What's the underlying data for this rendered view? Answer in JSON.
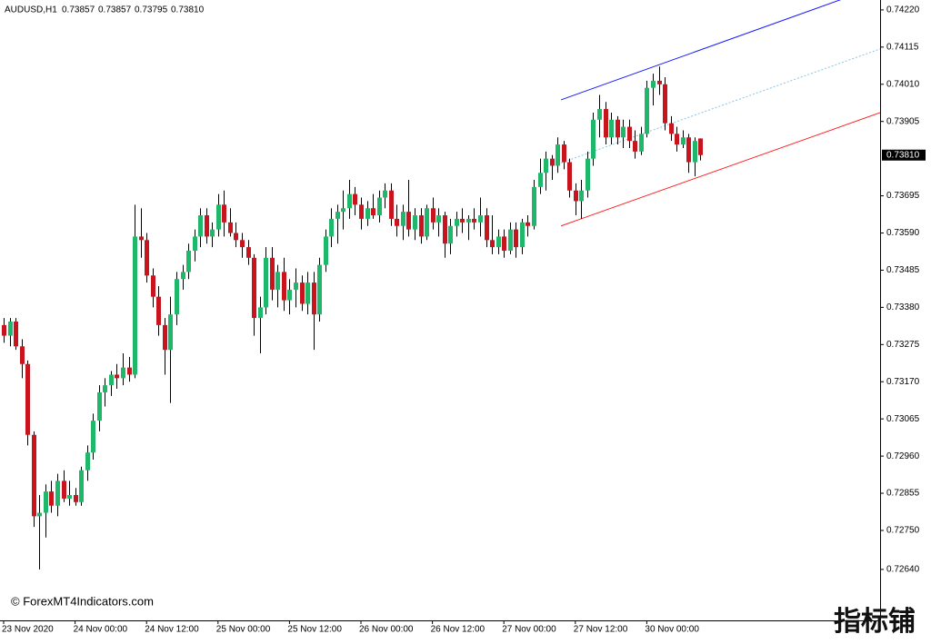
{
  "chart_data": {
    "type": "candlestick",
    "title": "AUDUSD,H1",
    "last_labels": [
      "0.73857",
      "0.73857",
      "0.73795",
      "0.73810"
    ],
    "watermark": "© ForexMT4Indicators.com",
    "logo": "指标铺",
    "bull_color": "#1fb86a",
    "bear_color": "#c8141c",
    "wick_color": "#000000",
    "ylim": [
      0.72496,
      0.74248
    ],
    "yticks": [
      {
        "value": 0.7422,
        "label": "0.74220"
      },
      {
        "value": 0.74115,
        "label": "0.74115"
      },
      {
        "value": 0.7401,
        "label": "0.74010"
      },
      {
        "value": 0.73905,
        "label": "0.73905"
      },
      {
        "value": 0.73695,
        "label": "0.73695"
      },
      {
        "value": 0.7359,
        "label": "0.73590"
      },
      {
        "value": 0.73485,
        "label": "0.73485"
      },
      {
        "value": 0.7338,
        "label": "0.73380"
      },
      {
        "value": 0.73275,
        "label": "0.73275"
      },
      {
        "value": 0.7317,
        "label": "0.73170"
      },
      {
        "value": 0.73065,
        "label": "0.73065"
      },
      {
        "value": 0.7296,
        "label": "0.72960"
      },
      {
        "value": 0.72855,
        "label": "0.72855"
      },
      {
        "value": 0.7275,
        "label": "0.72750"
      },
      {
        "value": 0.7264,
        "label": "0.72640"
      }
    ],
    "current_price": {
      "value": 0.7381,
      "label": "0.73810"
    },
    "categories": [
      "23 Nov 2020",
      null,
      null,
      null,
      null,
      null,
      null,
      null,
      null,
      null,
      null,
      null,
      "24 Nov 00:00",
      null,
      null,
      null,
      null,
      null,
      null,
      null,
      null,
      null,
      null,
      null,
      "24 Nov 12:00",
      null,
      null,
      null,
      null,
      null,
      null,
      null,
      null,
      null,
      null,
      null,
      "25 Nov 00:00",
      null,
      null,
      null,
      null,
      null,
      null,
      null,
      null,
      null,
      null,
      null,
      "25 Nov 12:00",
      null,
      null,
      null,
      null,
      null,
      null,
      null,
      null,
      null,
      null,
      null,
      "26 Nov 00:00",
      null,
      null,
      null,
      null,
      null,
      null,
      null,
      null,
      null,
      null,
      null,
      "26 Nov 12:00",
      null,
      null,
      null,
      null,
      null,
      null,
      null,
      null,
      null,
      null,
      null,
      "27 Nov 00:00",
      null,
      null,
      null,
      null,
      null,
      null,
      null,
      null,
      null,
      null,
      null,
      "27 Nov 12:00",
      null,
      null,
      null,
      null,
      null,
      null,
      null,
      null,
      null,
      null,
      null,
      "30 Nov 00:00",
      null,
      null,
      null,
      null,
      null,
      null,
      null,
      null,
      null
    ],
    "candles": [
      [
        0.7333,
        0.7335,
        0.7328,
        0.733
      ],
      [
        0.733,
        0.7335,
        0.7327,
        0.7334
      ],
      [
        0.7334,
        0.7335,
        0.7326,
        0.7327
      ],
      [
        0.7327,
        0.7329,
        0.7318,
        0.7322
      ],
      [
        0.7322,
        0.7323,
        0.7299,
        0.7302
      ],
      [
        0.7302,
        0.7303,
        0.7276,
        0.7279
      ],
      [
        0.7279,
        0.7285,
        0.7264,
        0.728
      ],
      [
        0.728,
        0.7288,
        0.7273,
        0.7286
      ],
      [
        0.7286,
        0.7289,
        0.728,
        0.7282
      ],
      [
        0.7282,
        0.7291,
        0.7279,
        0.7289
      ],
      [
        0.7289,
        0.7292,
        0.7283,
        0.7284
      ],
      [
        0.7284,
        0.7289,
        0.7282,
        0.7285
      ],
      [
        0.7285,
        0.7287,
        0.7282,
        0.7283
      ],
      [
        0.7283,
        0.7293,
        0.7282,
        0.7292
      ],
      [
        0.7292,
        0.7299,
        0.7289,
        0.7297
      ],
      [
        0.7297,
        0.7308,
        0.7295,
        0.7306
      ],
      [
        0.7306,
        0.7316,
        0.7303,
        0.7314
      ],
      [
        0.7314,
        0.7318,
        0.731,
        0.7316
      ],
      [
        0.7316,
        0.732,
        0.7313,
        0.7319
      ],
      [
        0.7319,
        0.7322,
        0.7315,
        0.7318
      ],
      [
        0.7318,
        0.7325,
        0.7316,
        0.7321
      ],
      [
        0.7321,
        0.7324,
        0.7317,
        0.7319
      ],
      [
        0.7319,
        0.7367,
        0.7318,
        0.7358
      ],
      [
        0.7358,
        0.7366,
        0.7352,
        0.7357
      ],
      [
        0.7357,
        0.7359,
        0.7345,
        0.7347
      ],
      [
        0.7347,
        0.7349,
        0.7338,
        0.7341
      ],
      [
        0.7341,
        0.7344,
        0.733,
        0.7333
      ],
      [
        0.7333,
        0.7335,
        0.7319,
        0.7326
      ],
      [
        0.7326,
        0.7341,
        0.7311,
        0.7336
      ],
      [
        0.7336,
        0.7348,
        0.7333,
        0.7346
      ],
      [
        0.7346,
        0.735,
        0.7343,
        0.7348
      ],
      [
        0.7348,
        0.7356,
        0.7346,
        0.7354
      ],
      [
        0.7354,
        0.736,
        0.7351,
        0.7358
      ],
      [
        0.7358,
        0.7366,
        0.7355,
        0.7364
      ],
      [
        0.7364,
        0.7366,
        0.7356,
        0.7358
      ],
      [
        0.7358,
        0.7362,
        0.7355,
        0.736
      ],
      [
        0.736,
        0.737,
        0.7358,
        0.7367
      ],
      [
        0.7367,
        0.7371,
        0.7358,
        0.7362
      ],
      [
        0.7362,
        0.7366,
        0.7358,
        0.7359
      ],
      [
        0.7359,
        0.7362,
        0.7355,
        0.7357
      ],
      [
        0.7357,
        0.7359,
        0.7352,
        0.7355
      ],
      [
        0.7355,
        0.7357,
        0.735,
        0.7352
      ],
      [
        0.7352,
        0.7353,
        0.733,
        0.7335
      ],
      [
        0.7335,
        0.7341,
        0.7325,
        0.7338
      ],
      [
        0.7338,
        0.7355,
        0.7336,
        0.7352
      ],
      [
        0.7352,
        0.7355,
        0.734,
        0.7343
      ],
      [
        0.7343,
        0.735,
        0.7338,
        0.7348
      ],
      [
        0.7348,
        0.7352,
        0.7337,
        0.734
      ],
      [
        0.734,
        0.7346,
        0.7336,
        0.7343
      ],
      [
        0.7343,
        0.7349,
        0.7338,
        0.7345
      ],
      [
        0.7345,
        0.7347,
        0.7337,
        0.7339
      ],
      [
        0.7339,
        0.7348,
        0.7336,
        0.7345
      ],
      [
        0.7345,
        0.7348,
        0.7326,
        0.7336
      ],
      [
        0.7336,
        0.7352,
        0.7334,
        0.735
      ],
      [
        0.735,
        0.736,
        0.7348,
        0.7358
      ],
      [
        0.7358,
        0.7366,
        0.7355,
        0.7363
      ],
      [
        0.7363,
        0.7367,
        0.7356,
        0.7365
      ],
      [
        0.7365,
        0.7371,
        0.736,
        0.7366
      ],
      [
        0.7366,
        0.7374,
        0.7363,
        0.737
      ],
      [
        0.737,
        0.7372,
        0.7364,
        0.7367
      ],
      [
        0.7367,
        0.7369,
        0.736,
        0.7363
      ],
      [
        0.7363,
        0.7368,
        0.7361,
        0.7366
      ],
      [
        0.7366,
        0.737,
        0.7363,
        0.7364
      ],
      [
        0.7364,
        0.7371,
        0.7362,
        0.7369
      ],
      [
        0.7369,
        0.7373,
        0.7366,
        0.7371
      ],
      [
        0.7371,
        0.7373,
        0.7361,
        0.7363
      ],
      [
        0.7363,
        0.7367,
        0.7358,
        0.7361
      ],
      [
        0.7361,
        0.7367,
        0.7357,
        0.7365
      ],
      [
        0.7365,
        0.7374,
        0.7358,
        0.736
      ],
      [
        0.736,
        0.7366,
        0.7357,
        0.7364
      ],
      [
        0.7364,
        0.7366,
        0.7356,
        0.7358
      ],
      [
        0.7358,
        0.7367,
        0.7357,
        0.7366
      ],
      [
        0.7366,
        0.7369,
        0.736,
        0.7362
      ],
      [
        0.7362,
        0.7366,
        0.7358,
        0.7364
      ],
      [
        0.7364,
        0.7365,
        0.7352,
        0.7356
      ],
      [
        0.7356,
        0.7363,
        0.7353,
        0.7361
      ],
      [
        0.7361,
        0.7365,
        0.7358,
        0.7363
      ],
      [
        0.7363,
        0.7366,
        0.7359,
        0.7362
      ],
      [
        0.7362,
        0.7364,
        0.7357,
        0.7363
      ],
      [
        0.7363,
        0.7366,
        0.736,
        0.7362
      ],
      [
        0.7362,
        0.7369,
        0.7358,
        0.7364
      ],
      [
        0.7364,
        0.7366,
        0.7355,
        0.7357
      ],
      [
        0.7357,
        0.7364,
        0.7353,
        0.7355
      ],
      [
        0.7355,
        0.736,
        0.7353,
        0.7358
      ],
      [
        0.7358,
        0.736,
        0.7352,
        0.7354
      ],
      [
        0.7354,
        0.7362,
        0.7353,
        0.736
      ],
      [
        0.736,
        0.7362,
        0.7352,
        0.7355
      ],
      [
        0.7355,
        0.7363,
        0.7353,
        0.7362
      ],
      [
        0.7362,
        0.7364,
        0.7358,
        0.7361
      ],
      [
        0.7361,
        0.7374,
        0.736,
        0.7372
      ],
      [
        0.7372,
        0.738,
        0.737,
        0.7376
      ],
      [
        0.7376,
        0.7382,
        0.7371,
        0.738
      ],
      [
        0.738,
        0.7381,
        0.7374,
        0.7378
      ],
      [
        0.7378,
        0.7386,
        0.7376,
        0.7384
      ],
      [
        0.7384,
        0.7385,
        0.7377,
        0.7379
      ],
      [
        0.7379,
        0.738,
        0.7369,
        0.7371
      ],
      [
        0.7371,
        0.7373,
        0.7364,
        0.7368
      ],
      [
        0.7368,
        0.7374,
        0.7363,
        0.7371
      ],
      [
        0.7371,
        0.7382,
        0.7369,
        0.738
      ],
      [
        0.738,
        0.7393,
        0.7378,
        0.7391
      ],
      [
        0.7391,
        0.7398,
        0.7386,
        0.7394
      ],
      [
        0.7394,
        0.7396,
        0.7384,
        0.7386
      ],
      [
        0.7386,
        0.7393,
        0.7384,
        0.7391
      ],
      [
        0.7391,
        0.7392,
        0.7384,
        0.7386
      ],
      [
        0.7386,
        0.7391,
        0.7383,
        0.7389
      ],
      [
        0.7389,
        0.7391,
        0.7383,
        0.7385
      ],
      [
        0.7385,
        0.7388,
        0.738,
        0.7382
      ],
      [
        0.7382,
        0.7389,
        0.7381,
        0.7387
      ],
      [
        0.7387,
        0.7402,
        0.7386,
        0.74
      ],
      [
        0.74,
        0.7404,
        0.7395,
        0.7402
      ],
      [
        0.7402,
        0.7406,
        0.7398,
        0.7401
      ],
      [
        0.7401,
        0.7403,
        0.7388,
        0.739
      ],
      [
        0.739,
        0.7392,
        0.7385,
        0.7387
      ],
      [
        0.7387,
        0.7389,
        0.7382,
        0.7384
      ],
      [
        0.7384,
        0.7388,
        0.7383,
        0.7386
      ],
      [
        0.7386,
        0.7387,
        0.7376,
        0.7379
      ],
      [
        0.7379,
        0.7386,
        0.7375,
        0.7385
      ],
      [
        0.73857,
        0.73857,
        0.73795,
        0.7381
      ]
    ],
    "channel": {
      "x": [
        93.6,
        147.2
      ],
      "upper": [
        0.73966,
        0.74289
      ],
      "upper_color": "#1a1aff",
      "middle": [
        0.73788,
        0.7411
      ],
      "middle_color": "#87c4e8",
      "lower": [
        0.7361,
        0.7393
      ],
      "lower_color": "#ff2020"
    }
  }
}
